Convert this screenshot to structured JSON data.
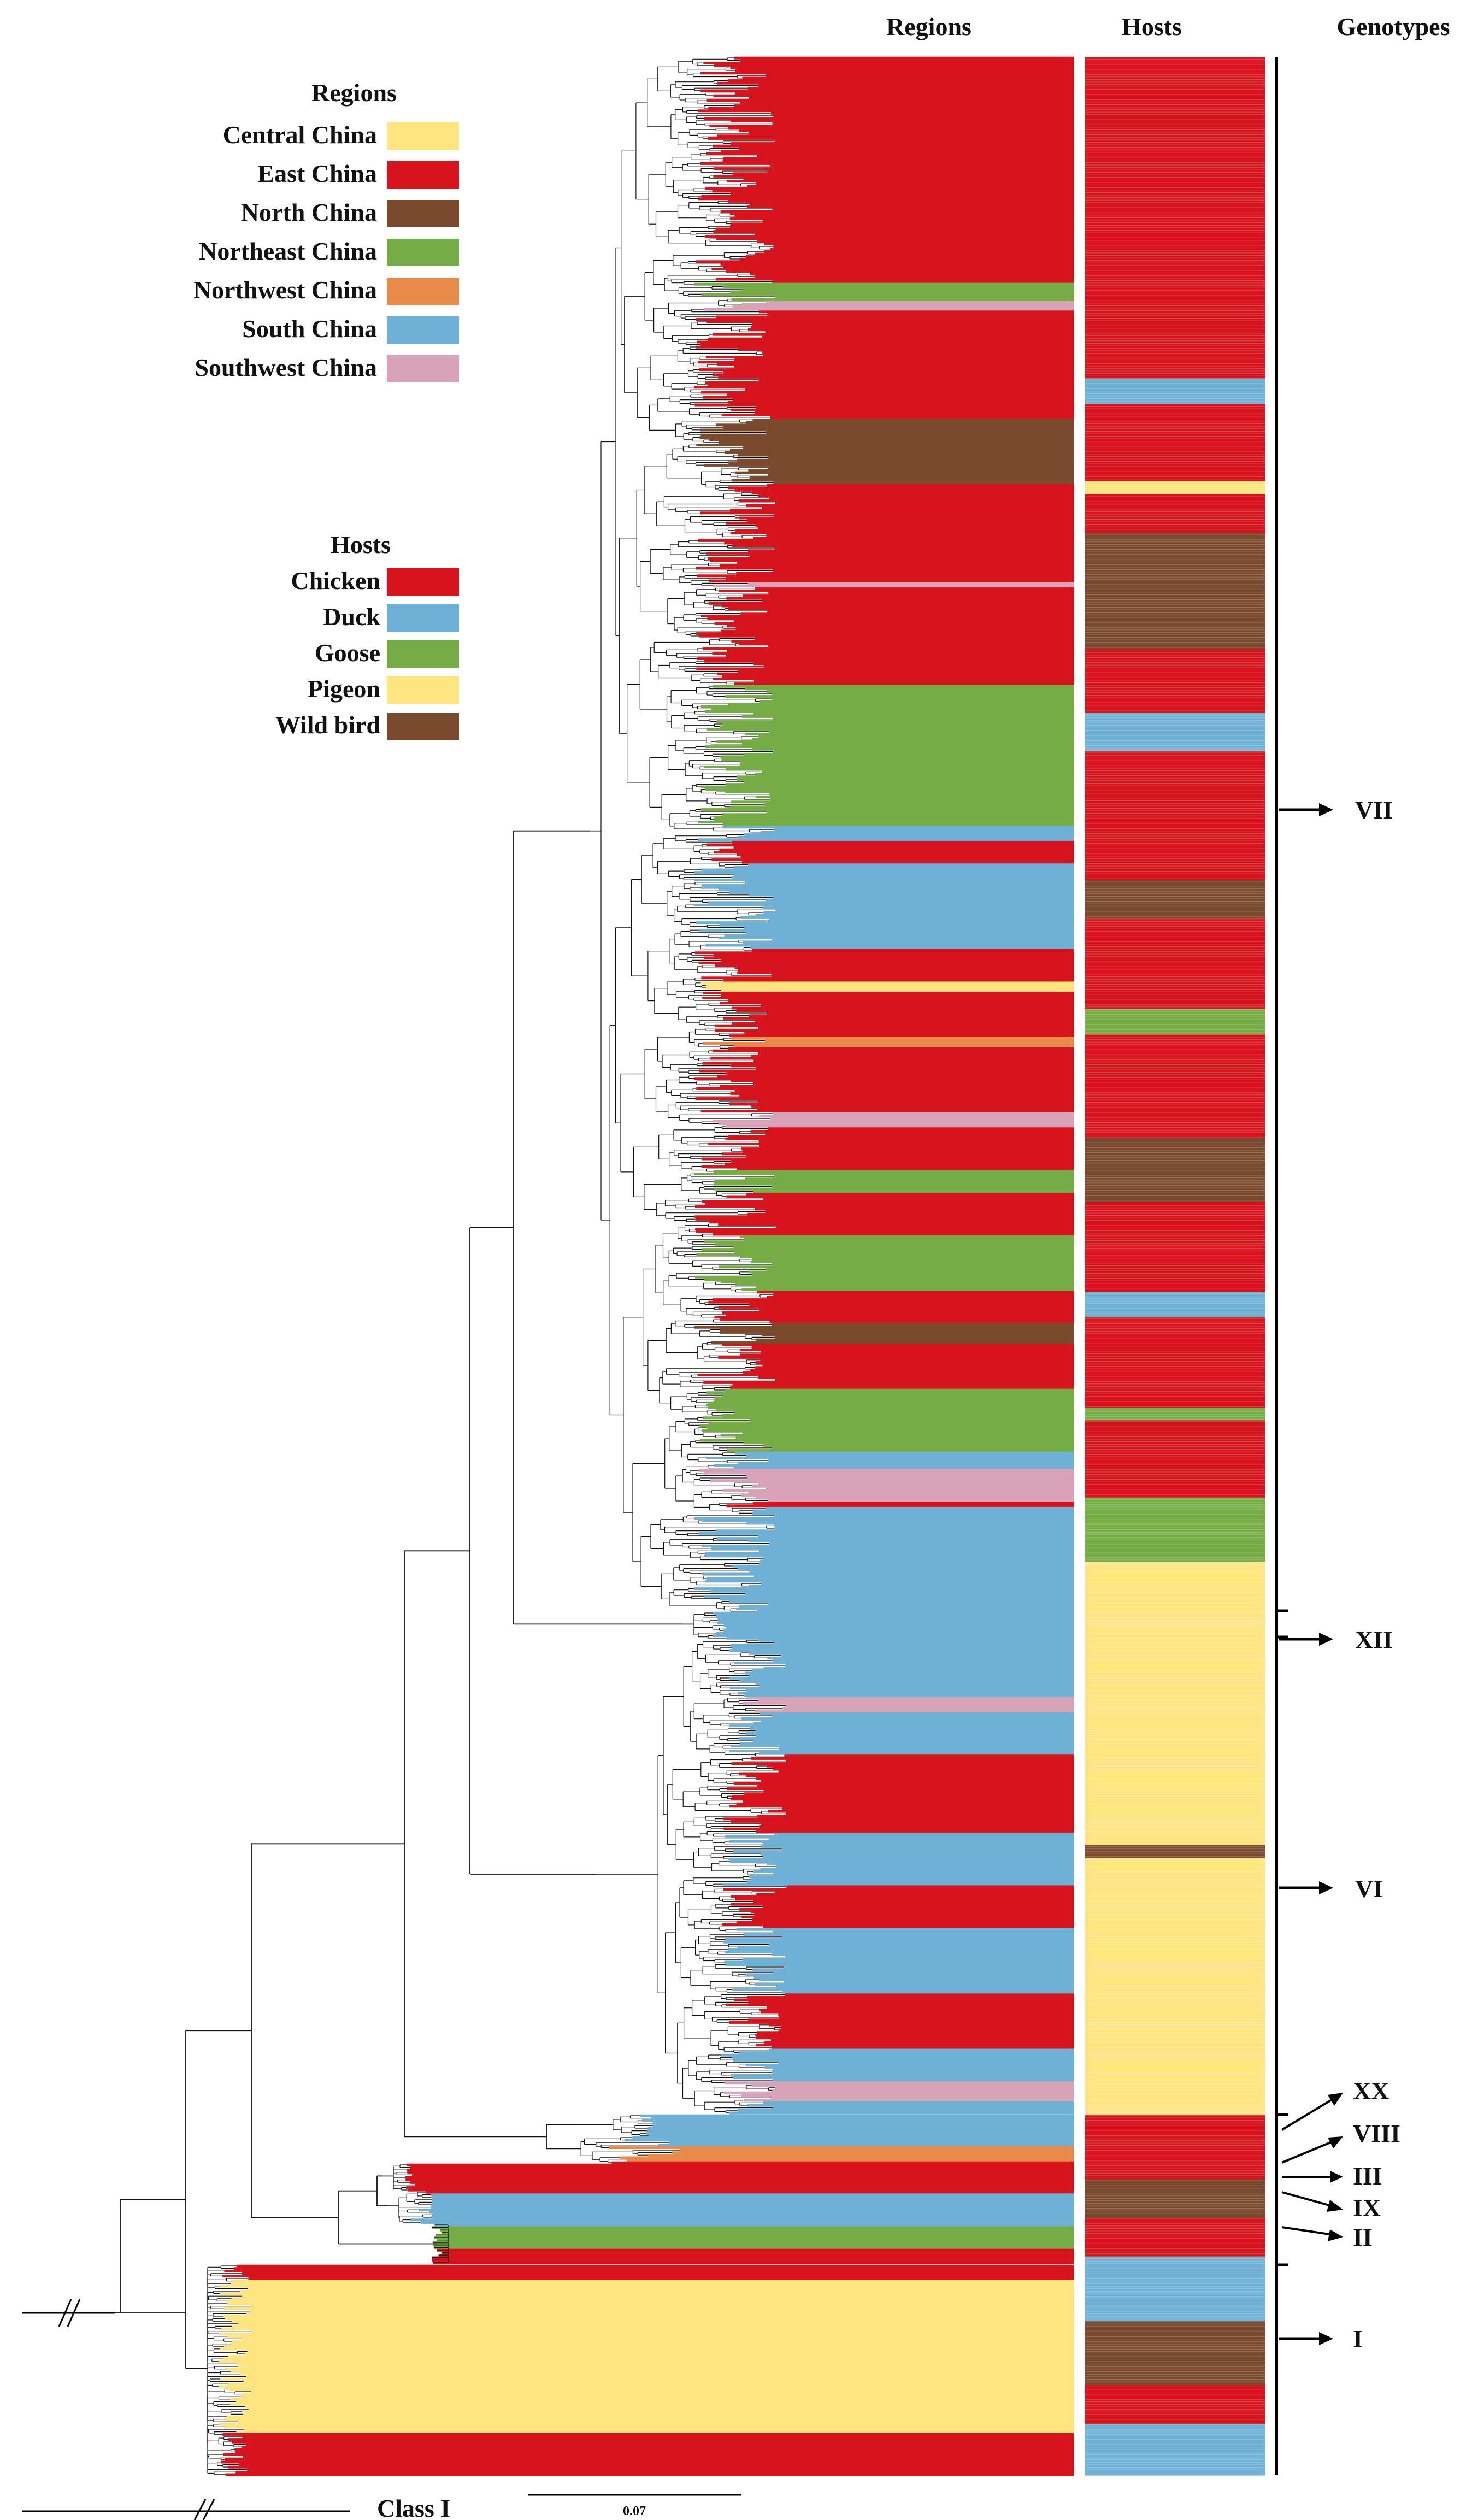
{
  "headers": {
    "regions": "Regions",
    "hosts": "Hosts",
    "genotypes": "Genotypes"
  },
  "legend_regions": {
    "title": "Regions",
    "items": [
      {
        "label": "Central China",
        "color": "#FFE57F"
      },
      {
        "label": "East China",
        "color": "#D7141E"
      },
      {
        "label": "North China",
        "color": "#7A4A2E"
      },
      {
        "label": "Northeast China",
        "color": "#76AC45"
      },
      {
        "label": "Northwest China",
        "color": "#E88A4A"
      },
      {
        "label": "South China",
        "color": "#6FB1D6"
      },
      {
        "label": "Southwest China",
        "color": "#D9A3B7"
      }
    ]
  },
  "legend_hosts": {
    "title": "Hosts",
    "items": [
      {
        "label": "Chicken",
        "color": "#D7141E"
      },
      {
        "label": "Duck",
        "color": "#6FB1D6"
      },
      {
        "label": "Goose",
        "color": "#76AC45"
      },
      {
        "label": "Pigeon",
        "color": "#FFE57F"
      },
      {
        "label": "Wild bird",
        "color": "#7A4A2E"
      }
    ]
  },
  "genotypes": [
    {
      "label": "VII"
    },
    {
      "label": "XII"
    },
    {
      "label": "VI"
    },
    {
      "label": "XX"
    },
    {
      "label": "VIII"
    },
    {
      "label": "III"
    },
    {
      "label": "IX"
    },
    {
      "label": "II"
    },
    {
      "label": "I"
    }
  ],
  "scale_bar": {
    "label": "0.07"
  },
  "outgroup": {
    "label": "Class I"
  },
  "region_segments": [
    {
      "name": "East China",
      "color": "#D7141E",
      "count": 42
    },
    {
      "name": "Northeast China",
      "color": "#76AC45",
      "count": 3
    },
    {
      "name": "Southwest China",
      "color": "#D9A3B7",
      "count": 2
    },
    {
      "name": "East China",
      "color": "#D7141E",
      "count": 20
    },
    {
      "name": "North China",
      "color": "#7A4A2E",
      "count": 12
    },
    {
      "name": "East China",
      "color": "#D7141E",
      "count": 18
    },
    {
      "name": "Southwest China",
      "color": "#D9A3B7",
      "count": 1
    },
    {
      "name": "East China",
      "color": "#D7141E",
      "count": 18
    },
    {
      "name": "Northeast China",
      "color": "#76AC45",
      "count": 26
    },
    {
      "name": "South China",
      "color": "#6FB1D6",
      "count": 3
    },
    {
      "name": "East China",
      "color": "#D7141E",
      "count": 4
    },
    {
      "name": "South China",
      "color": "#6FB1D6",
      "count": 16
    },
    {
      "name": "East China",
      "color": "#D7141E",
      "count": 6
    },
    {
      "name": "Central China",
      "color": "#FFE57F",
      "count": 2
    },
    {
      "name": "East China",
      "color": "#D7141E",
      "count": 8
    },
    {
      "name": "Northwest China",
      "color": "#E88A4A",
      "count": 2
    },
    {
      "name": "East China",
      "color": "#D7141E",
      "count": 12
    },
    {
      "name": "Southwest China",
      "color": "#D9A3B7",
      "count": 3
    },
    {
      "name": "East China",
      "color": "#D7141E",
      "count": 8
    },
    {
      "name": "Northeast China",
      "color": "#76AC45",
      "count": 4
    },
    {
      "name": "East China",
      "color": "#D7141E",
      "count": 8
    },
    {
      "name": "Northeast China",
      "color": "#76AC45",
      "count": 10
    },
    {
      "name": "East China",
      "color": "#D7141E",
      "count": 6
    },
    {
      "name": "North China",
      "color": "#7A4A2E",
      "count": 4
    },
    {
      "name": "East China",
      "color": "#D7141E",
      "count": 8
    },
    {
      "name": "Northeast China",
      "color": "#76AC45",
      "count": 12
    },
    {
      "name": "South China",
      "color": "#6FB1D6",
      "count": 3
    },
    {
      "name": "Southwest China",
      "color": "#D9A3B7",
      "count": 6
    },
    {
      "name": "East China",
      "color": "#D7141E",
      "count": 1
    },
    {
      "name": "South China",
      "color": "#6FB1D6",
      "count": 35
    },
    {
      "name": "Southwest China",
      "color": "#D9A3B7",
      "count": 3
    },
    {
      "name": "South China",
      "color": "#6FB1D6",
      "count": 8
    },
    {
      "name": "East China",
      "color": "#D7141E",
      "count": 14
    },
    {
      "name": "South China",
      "color": "#6FB1D6",
      "count": 10
    },
    {
      "name": "East China",
      "color": "#D7141E",
      "count": 8
    },
    {
      "name": "South China",
      "color": "#6FB1D6",
      "count": 12
    },
    {
      "name": "East China",
      "color": "#D7141E",
      "count": 10
    },
    {
      "name": "South China",
      "color": "#6FB1D6",
      "count": 6
    },
    {
      "name": "Southwest China",
      "color": "#D9A3B7",
      "count": 4
    },
    {
      "name": "South China",
      "color": "#6FB1D6",
      "count": 8
    },
    {
      "name": "Northwest China",
      "color": "#E88A4A",
      "count": 3
    },
    {
      "name": "East China",
      "color": "#D7141E",
      "count": 6
    },
    {
      "name": "South China",
      "color": "#6FB1D6",
      "count": 6
    },
    {
      "name": "Northeast China",
      "color": "#76AC45",
      "count": 4
    },
    {
      "name": "East China",
      "color": "#D7141E",
      "count": 6
    },
    {
      "name": "Central China",
      "color": "#FFE57F",
      "count": 28
    },
    {
      "name": "East China",
      "color": "#D7141E",
      "count": 8
    }
  ],
  "host_segments": [
    {
      "name": "Chicken",
      "color": "#D7141E",
      "count": 50
    },
    {
      "name": "Duck",
      "color": "#6FB1D6",
      "count": 4
    },
    {
      "name": "Chicken",
      "color": "#D7141E",
      "count": 12
    },
    {
      "name": "Pigeon",
      "color": "#FFE57F",
      "count": 2
    },
    {
      "name": "Chicken",
      "color": "#D7141E",
      "count": 6
    },
    {
      "name": "Wild bird",
      "color": "#7A4A2E",
      "count": 18
    },
    {
      "name": "Chicken",
      "color": "#D7141E",
      "count": 10
    },
    {
      "name": "Duck",
      "color": "#6FB1D6",
      "count": 6
    },
    {
      "name": "Chicken",
      "color": "#D7141E",
      "count": 20
    },
    {
      "name": "Wild bird",
      "color": "#7A4A2E",
      "count": 6
    },
    {
      "name": "Chicken",
      "color": "#D7141E",
      "count": 14
    },
    {
      "name": "Goose",
      "color": "#76AC45",
      "count": 4
    },
    {
      "name": "Chicken",
      "color": "#D7141E",
      "count": 16
    },
    {
      "name": "Wild bird",
      "color": "#7A4A2E",
      "count": 10
    },
    {
      "name": "Chicken",
      "color": "#D7141E",
      "count": 14
    },
    {
      "name": "Duck",
      "color": "#6FB1D6",
      "count": 4
    },
    {
      "name": "Chicken",
      "color": "#D7141E",
      "count": 14
    },
    {
      "name": "Goose",
      "color": "#76AC45",
      "count": 2
    },
    {
      "name": "Chicken",
      "color": "#D7141E",
      "count": 12
    },
    {
      "name": "Goose",
      "color": "#76AC45",
      "count": 10
    },
    {
      "name": "Pigeon",
      "color": "#FFE57F",
      "count": 44
    },
    {
      "name": "Wild bird",
      "color": "#7A4A2E",
      "count": 2
    },
    {
      "name": "Pigeon",
      "color": "#FFE57F",
      "count": 40
    },
    {
      "name": "Chicken",
      "color": "#D7141E",
      "count": 10
    },
    {
      "name": "Wild bird",
      "color": "#7A4A2E",
      "count": 6
    },
    {
      "name": "Chicken",
      "color": "#D7141E",
      "count": 6
    },
    {
      "name": "Duck",
      "color": "#6FB1D6",
      "count": 10
    },
    {
      "name": "Wild bird",
      "color": "#7A4A2E",
      "count": 10
    },
    {
      "name": "Chicken",
      "color": "#D7141E",
      "count": 6
    },
    {
      "name": "Duck",
      "color": "#6FB1D6",
      "count": 8
    }
  ]
}
